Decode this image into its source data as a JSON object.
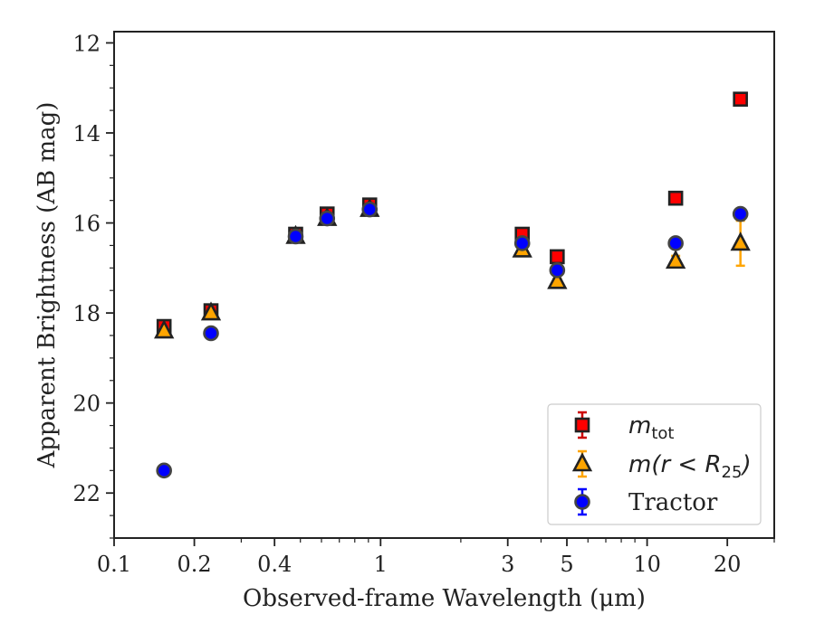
{
  "chart_data": {
    "type": "scatter",
    "xlabel": "Observed-frame Wavelength (μm)",
    "ylabel": "Apparent Brightness (AB mag)",
    "x_scale": "log",
    "xlim": [
      0.1,
      30
    ],
    "ylim": [
      23,
      11.75
    ],
    "y_inverted": true,
    "x_ticks": [
      0.1,
      0.2,
      0.4,
      1,
      3,
      5,
      10,
      20
    ],
    "x_tick_labels": [
      "0.1",
      "0.2",
      "0.4",
      "1",
      "3",
      "5",
      "10",
      "20"
    ],
    "y_ticks": [
      12,
      14,
      16,
      18,
      20,
      22
    ],
    "y_tick_labels": [
      "12",
      "14",
      "16",
      "18",
      "20",
      "22"
    ],
    "grid": false,
    "legend_position": "bottom-right",
    "series": [
      {
        "name": "m_tot",
        "legend_main": "m",
        "legend_sub": "tot",
        "marker": "square",
        "fill": "#ff0000",
        "edge": "#222222",
        "errcolor": "#cc0000",
        "x": [
          0.154,
          0.231,
          0.48,
          0.63,
          0.91,
          3.4,
          4.6,
          12.8,
          22.4
        ],
        "y": [
          18.3,
          17.95,
          16.25,
          15.8,
          15.6,
          16.25,
          16.75,
          15.45,
          13.25
        ],
        "err": [
          0.08,
          0.06,
          0.05,
          0.04,
          0.04,
          0.05,
          0.05,
          0.08,
          0.08
        ]
      },
      {
        "name": "m(r < R25)",
        "legend_main": "m(r < R",
        "legend_sub": "25",
        "legend_tail": ")",
        "marker": "triangle",
        "fill": "#ffa500",
        "edge": "#222222",
        "errcolor": "#ffa500",
        "x": [
          0.154,
          0.231,
          0.48,
          0.63,
          0.91,
          3.4,
          4.6,
          12.8,
          22.4
        ],
        "y": [
          18.4,
          18.0,
          16.3,
          15.9,
          15.7,
          16.6,
          17.3,
          16.85,
          16.45
        ],
        "err": [
          0.06,
          0.05,
          0.04,
          0.04,
          0.04,
          0.05,
          0.06,
          0.12,
          0.5
        ]
      },
      {
        "name": "Tractor",
        "legend_main": "Tractor",
        "marker": "circle",
        "fill": "#0000ff",
        "edge": "#444444",
        "errcolor": "#0000ff",
        "x": [
          0.154,
          0.231,
          0.48,
          0.63,
          0.91,
          3.4,
          4.6,
          12.8,
          22.4
        ],
        "y": [
          21.5,
          18.45,
          16.3,
          15.9,
          15.7,
          16.45,
          17.05,
          16.45,
          15.8
        ],
        "err": [
          0.04,
          0.03,
          0.03,
          0.03,
          0.03,
          0.03,
          0.04,
          0.05,
          0.06
        ]
      }
    ]
  }
}
